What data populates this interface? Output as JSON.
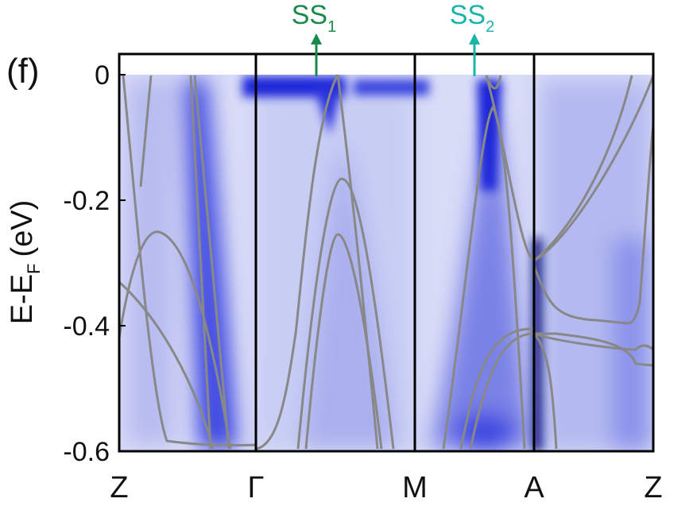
{
  "chart_data": {
    "type": "band-structure",
    "panel_label": "(f)",
    "y_label": {
      "main": "E-E",
      "sub": "F",
      "unit": "(eV)"
    },
    "annotations": [
      {
        "main": "SS",
        "sub": "1",
        "color": "#1a8a4a"
      },
      {
        "main": "SS",
        "sub": "2",
        "color": "#1ab5a8"
      }
    ],
    "categories": [
      "Z",
      "Γ",
      "M",
      "A",
      "Z"
    ],
    "ylim": [
      -0.6,
      0.033
    ],
    "yticks": [
      0,
      -0.2,
      -0.4,
      -0.6
    ],
    "band_color": "#888888"
  }
}
